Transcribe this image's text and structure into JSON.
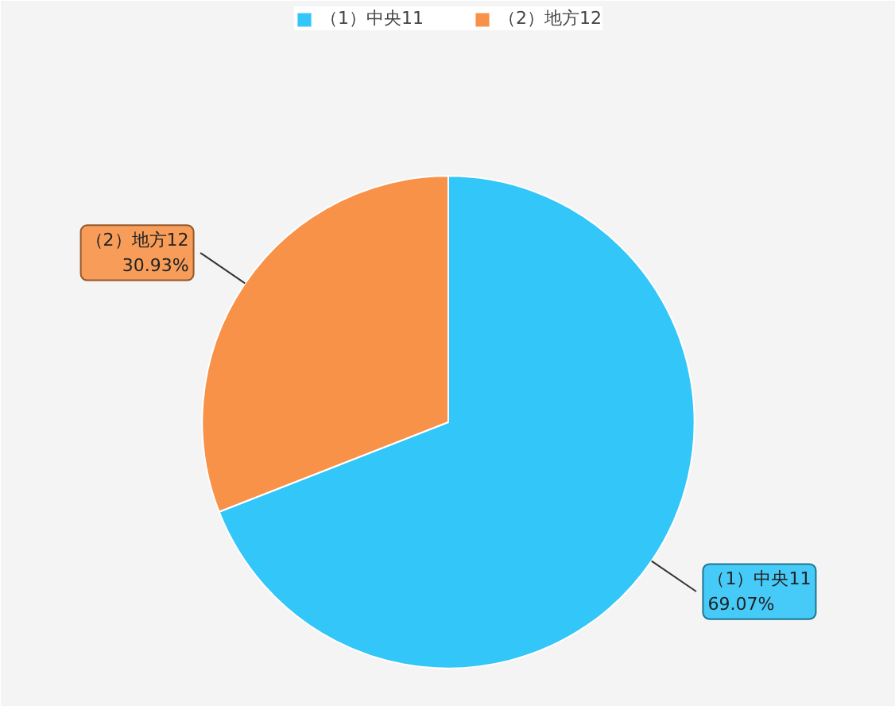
{
  "chart_data": {
    "type": "pie",
    "categories": [
      "（1）中央11",
      "（2）地方12"
    ],
    "values": [
      69.07,
      30.93
    ],
    "colors": [
      "#33c6f8",
      "#f79248"
    ],
    "value_labels": [
      "69.07%",
      "30.93%"
    ],
    "legend": "top"
  }
}
